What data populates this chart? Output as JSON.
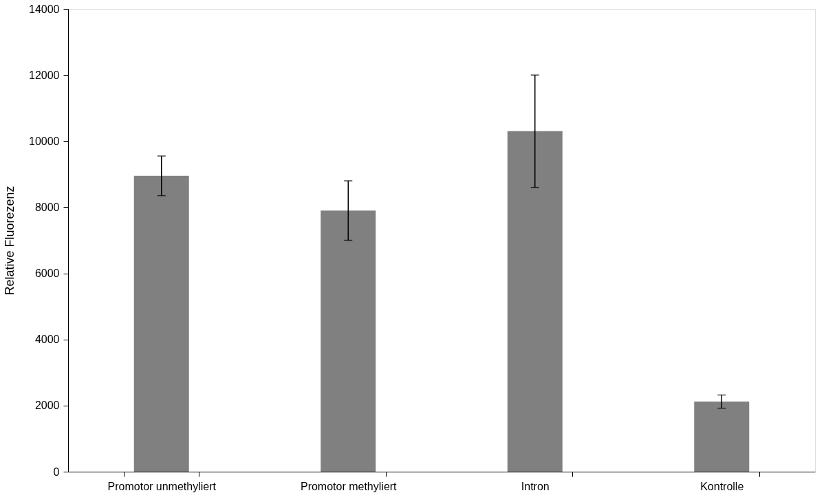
{
  "chart_data": {
    "type": "bar",
    "ylabel": "Relative Fluorezenz",
    "categories": [
      "Promotor unmethyliert",
      "Promotor methyliert",
      "Intron",
      "Kontrolle"
    ],
    "values": [
      8950,
      7900,
      10300,
      2120
    ],
    "errors": [
      600,
      900,
      1700,
      200
    ],
    "color": "#808080",
    "ylim": [
      0,
      14000
    ],
    "yticks": [
      0,
      2000,
      4000,
      6000,
      8000,
      10000,
      12000,
      14000
    ],
    "grid": false
  }
}
